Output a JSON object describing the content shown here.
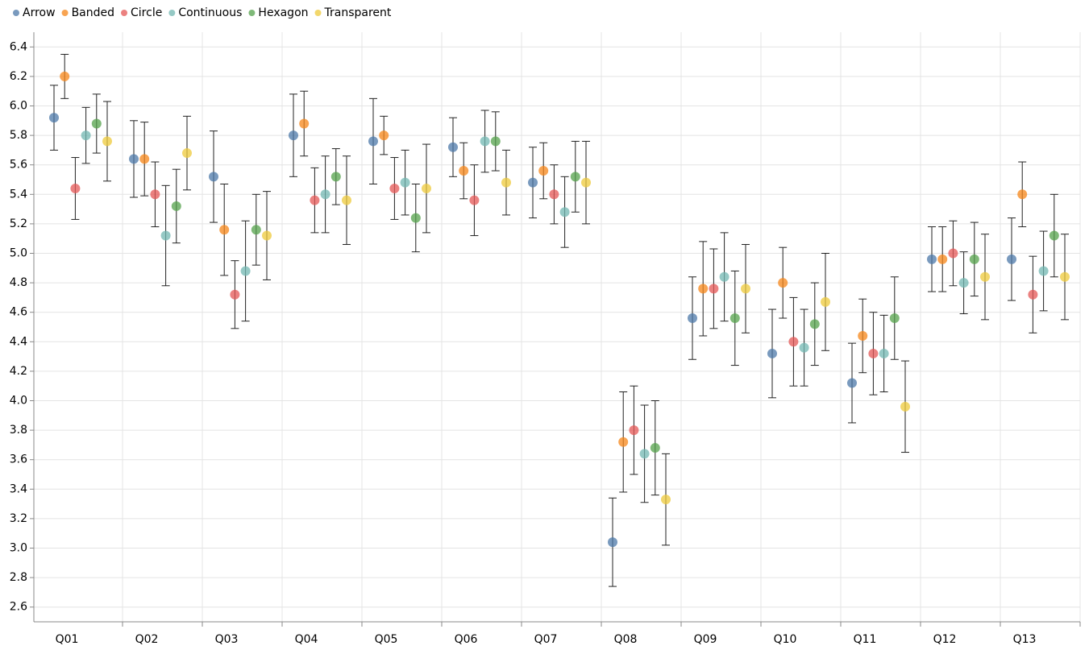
{
  "chart_data": {
    "type": "errorbar-dot",
    "categories": [
      "Q01",
      "Q02",
      "Q03",
      "Q04",
      "Q05",
      "Q06",
      "Q07",
      "Q08",
      "Q09",
      "Q10",
      "Q11",
      "Q12",
      "Q13"
    ],
    "series": [
      {
        "name": "Arrow",
        "color": "#4c78a8",
        "values": [
          5.92,
          5.64,
          5.52,
          5.8,
          5.76,
          5.72,
          5.48,
          3.04,
          4.56,
          4.32,
          4.12,
          4.96,
          4.96
        ],
        "errors": [
          0.22,
          0.26,
          0.31,
          0.28,
          0.29,
          0.2,
          0.24,
          0.3,
          0.28,
          0.3,
          0.27,
          0.22,
          0.28
        ]
      },
      {
        "name": "Banded",
        "color": "#f58518",
        "values": [
          6.2,
          5.64,
          5.16,
          5.88,
          5.8,
          5.56,
          5.56,
          3.72,
          4.76,
          4.8,
          4.44,
          4.96,
          5.4
        ],
        "errors": [
          0.15,
          0.25,
          0.31,
          0.22,
          0.13,
          0.19,
          0.19,
          0.34,
          0.32,
          0.24,
          0.25,
          0.22,
          0.22
        ]
      },
      {
        "name": "Circle",
        "color": "#e45756",
        "values": [
          5.44,
          5.4,
          4.72,
          5.36,
          5.44,
          5.36,
          5.4,
          3.8,
          4.76,
          4.4,
          4.32,
          5.0,
          4.72
        ],
        "errors": [
          0.21,
          0.22,
          0.23,
          0.22,
          0.21,
          0.24,
          0.2,
          0.3,
          0.27,
          0.3,
          0.28,
          0.22,
          0.26
        ]
      },
      {
        "name": "Continuous",
        "color": "#72b7b2",
        "values": [
          5.8,
          5.12,
          4.88,
          5.4,
          5.48,
          5.76,
          5.28,
          3.64,
          4.84,
          4.36,
          4.32,
          4.8,
          4.88
        ],
        "errors": [
          0.19,
          0.34,
          0.34,
          0.26,
          0.22,
          0.21,
          0.24,
          0.33,
          0.3,
          0.26,
          0.26,
          0.21,
          0.27
        ]
      },
      {
        "name": "Hexagon",
        "color": "#54a24b",
        "values": [
          5.88,
          5.32,
          5.16,
          5.52,
          5.24,
          5.76,
          5.52,
          3.68,
          4.56,
          4.52,
          4.56,
          4.96,
          5.12
        ],
        "errors": [
          0.2,
          0.25,
          0.24,
          0.19,
          0.23,
          0.2,
          0.24,
          0.32,
          0.32,
          0.28,
          0.28,
          0.25,
          0.28
        ]
      },
      {
        "name": "Transparent",
        "color": "#eeca3b",
        "values": [
          5.76,
          5.68,
          5.12,
          5.36,
          5.44,
          5.48,
          5.48,
          3.33,
          4.76,
          4.67,
          3.96,
          4.84,
          4.84
        ],
        "errors": [
          0.27,
          0.25,
          0.3,
          0.3,
          0.3,
          0.22,
          0.28,
          0.31,
          0.3,
          0.33,
          0.31,
          0.29,
          0.29
        ]
      }
    ],
    "ylim": [
      2.5,
      6.5
    ],
    "yticks": [
      2.6,
      2.8,
      {
        "value": 3,
        "label": "3.0"
      },
      3.2,
      3.4,
      3.6,
      3.8,
      {
        "value": 4,
        "label": "4.0"
      },
      4.2,
      4.4,
      4.6,
      4.8,
      {
        "value": 5,
        "label": "5.0"
      },
      5.2,
      5.4,
      5.6,
      5.8,
      {
        "value": 6,
        "label": "6.0"
      },
      6.2,
      6.4
    ],
    "grid": true,
    "legend": "top-left"
  }
}
